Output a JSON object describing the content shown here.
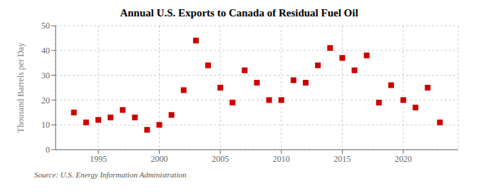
{
  "chart_data": {
    "type": "scatter",
    "title": "Annual U.S. Exports to Canada of Residual Fuel Oil",
    "ylabel": "Thousand Barrels per Day",
    "annotations": [
      "Source: U.S. Energy Information Administration"
    ],
    "x": [
      1993,
      1994,
      1995,
      1996,
      1997,
      1998,
      1999,
      2000,
      2001,
      2002,
      2003,
      2004,
      2005,
      2006,
      2007,
      2008,
      2009,
      2010,
      2011,
      2012,
      2013,
      2014,
      2015,
      2016,
      2017,
      2018,
      2019,
      2020,
      2021,
      2022,
      2023
    ],
    "values": [
      15,
      11,
      12,
      13,
      16,
      13,
      8,
      10,
      14,
      24,
      44,
      34,
      25,
      19,
      32,
      27,
      20,
      20,
      28,
      27,
      34,
      41,
      37,
      32,
      38,
      19,
      26,
      20,
      17,
      25,
      11
    ],
    "color": "#cc0000",
    "marker": "square",
    "xlim": [
      1991.5,
      2024.5
    ],
    "xticks": [
      1995,
      2000,
      2005,
      2010,
      2015,
      2020
    ],
    "ylim": [
      0,
      50
    ],
    "yticks": [
      0,
      10,
      20,
      30,
      40,
      50
    ],
    "grid": true
  }
}
